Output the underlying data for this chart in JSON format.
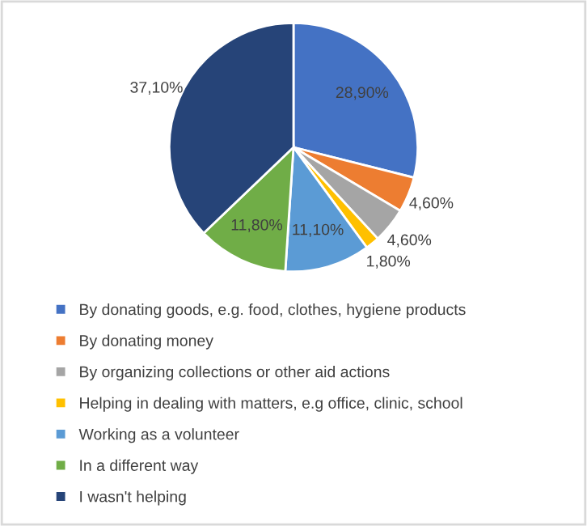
{
  "chart_data": {
    "type": "pie",
    "categories": [
      "By donating goods, e.g. food, clothes, hygiene products",
      "By donating money",
      "By organizing collections or other aid actions",
      "Helping in dealing with matters, e.g office, clinic, school",
      "Working as a volunteer",
      "In a different way",
      "I wasn't helping"
    ],
    "values": [
      28.9,
      4.6,
      4.6,
      1.8,
      11.1,
      11.8,
      37.1
    ],
    "value_labels": [
      "28,90%",
      "4,60%",
      "4,60%",
      "1,80%",
      "11,10%",
      "11,80%",
      "37,10%"
    ],
    "colors": [
      "#4472c4",
      "#ed7d31",
      "#a5a5a5",
      "#ffc000",
      "#5b9bd5",
      "#70ad47",
      "#264478"
    ],
    "legend": "bottom"
  }
}
